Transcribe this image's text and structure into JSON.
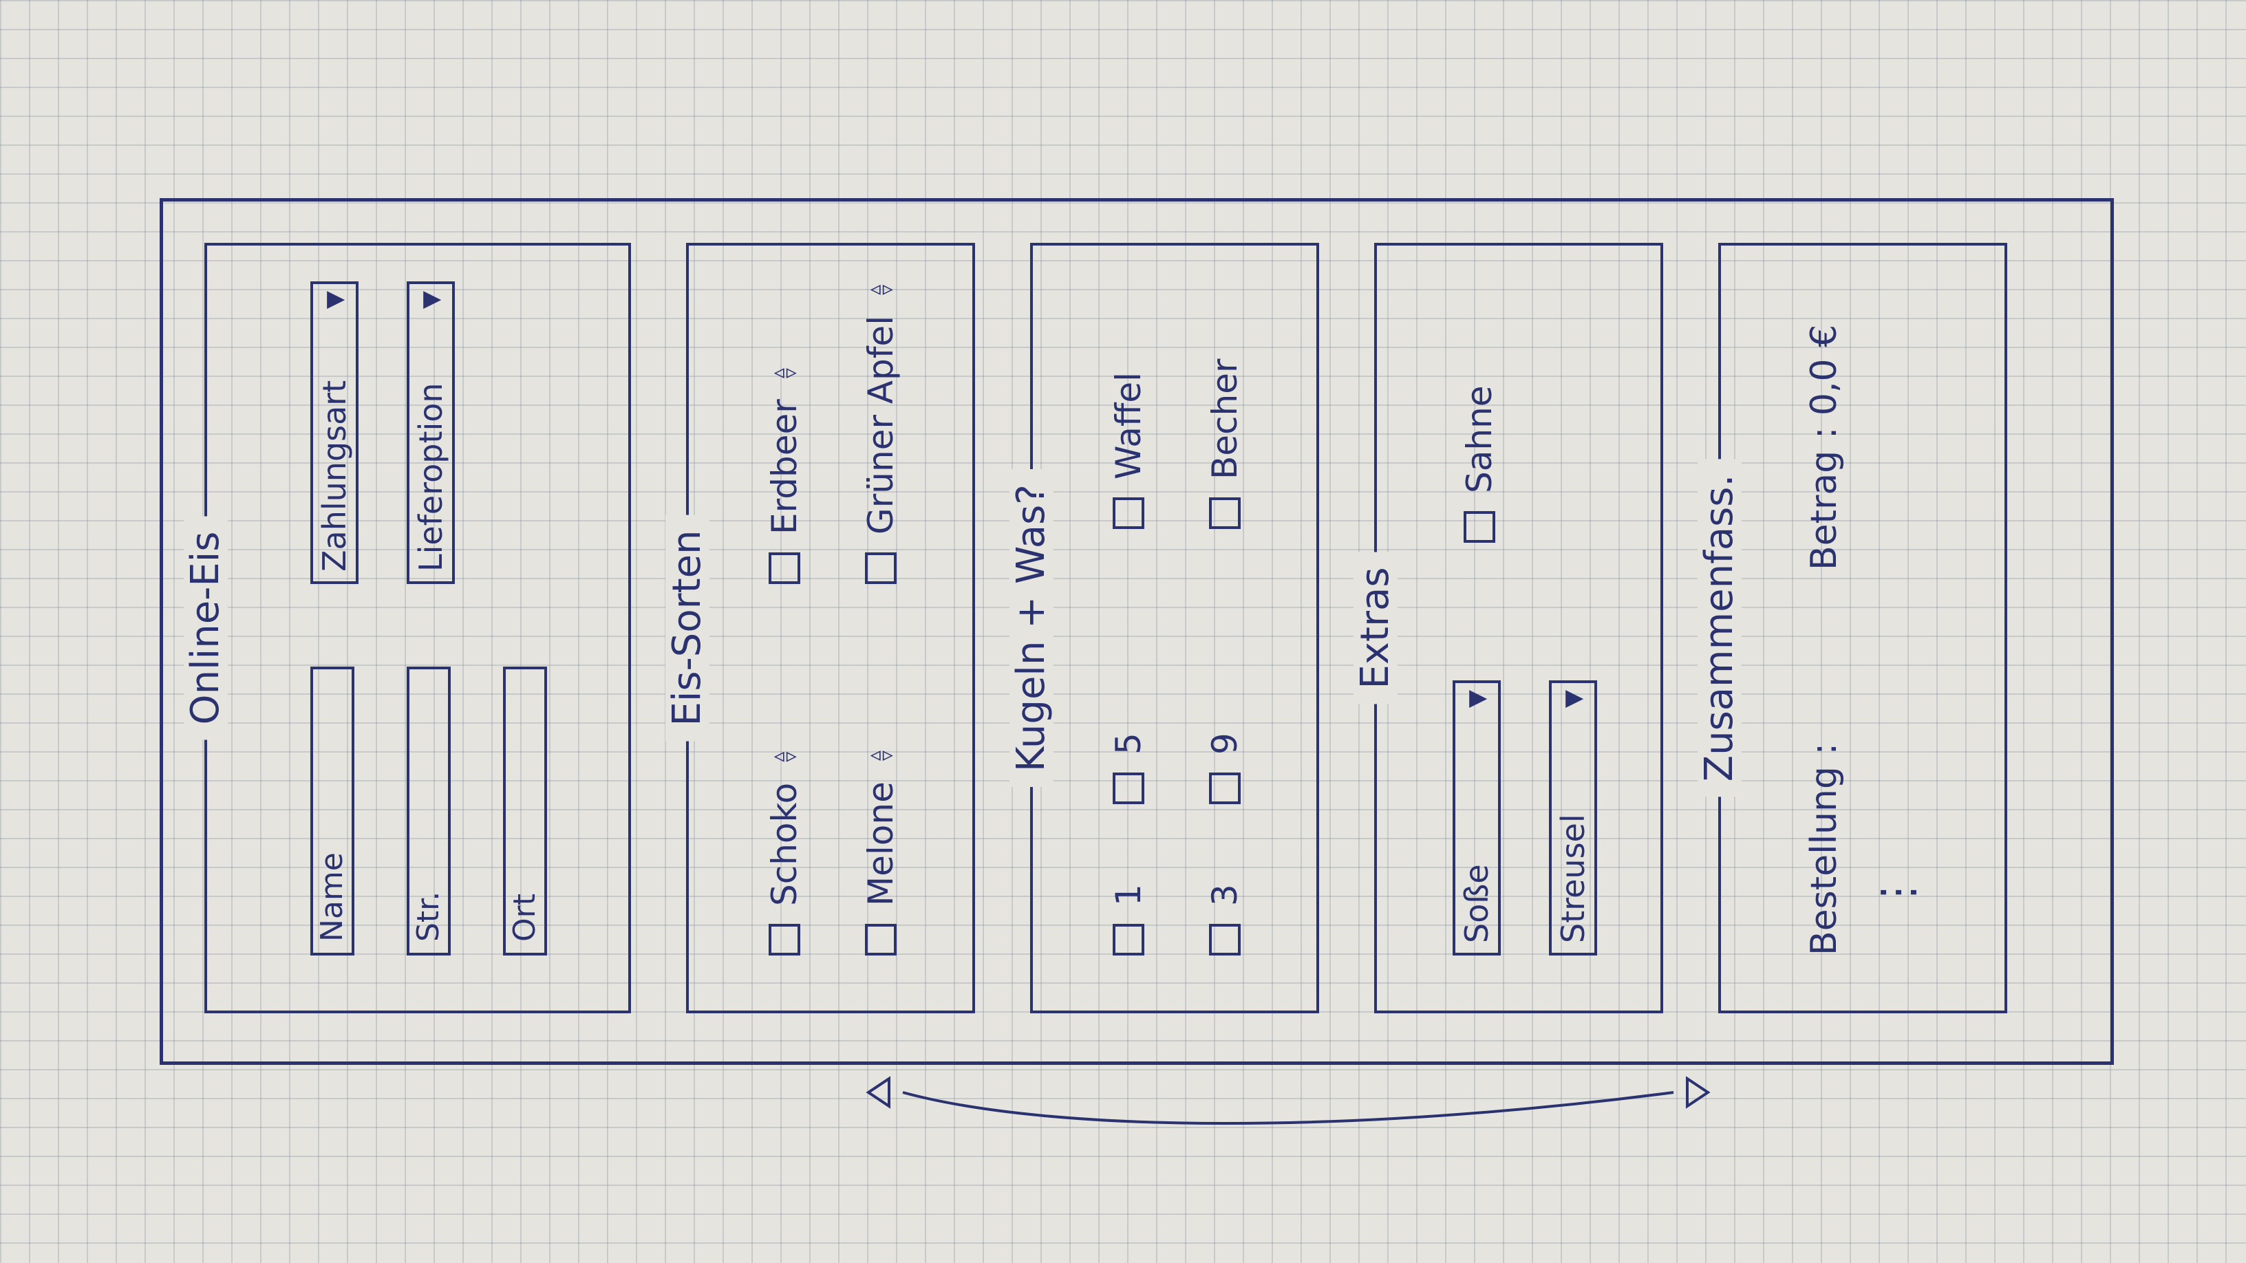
{
  "window": {
    "title": "Online-Eis"
  },
  "customer": {
    "name_placeholder": "Name",
    "street_placeholder": "Str.",
    "city_placeholder": "Ort",
    "payment_select": "Zahlungsart",
    "delivery_select": "Lieferoption"
  },
  "flavors": {
    "legend": "Eis-Sorten",
    "items": [
      {
        "label": "Schoko"
      },
      {
        "label": "Erdbeer"
      },
      {
        "label": "Melone"
      },
      {
        "label": "Grüner Apfel"
      }
    ]
  },
  "scoops": {
    "legend": "Kugeln + Was?",
    "counts": [
      "1",
      "5",
      "3",
      "9"
    ],
    "containers": [
      "Waffel",
      "Becher"
    ]
  },
  "extras": {
    "legend": "Extras",
    "sauce_select": "Soße",
    "sprinkles_select": "Streusel",
    "cream_label": "Sahne"
  },
  "summary": {
    "legend": "Zusammenfass.",
    "order_label": "Bestellung :",
    "order_more": "⋮",
    "amount_label": "Betrag : 0,0 €"
  },
  "icons": {
    "dropdown": "triangle-down-icon",
    "spinner": "up-down-arrows-icon",
    "reorder": "curved-double-arrow-icon"
  },
  "colors": {
    "ink": "#2b3270",
    "paper": "#e6e4df"
  }
}
